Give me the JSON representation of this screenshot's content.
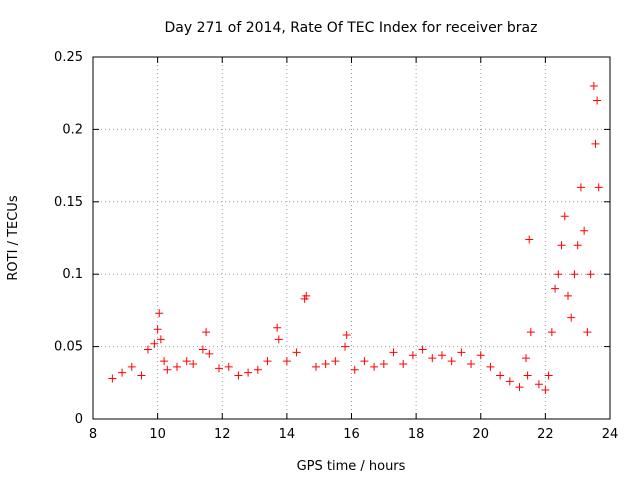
{
  "chart_data": {
    "type": "scatter",
    "title": "Day 271 of 2014, Rate Of TEC Index for receiver braz",
    "xlabel": "GPS time / hours",
    "ylabel": "ROTI / TECUs",
    "xlim": [
      8,
      24
    ],
    "ylim": [
      0,
      0.25
    ],
    "xticks": [
      8,
      10,
      12,
      14,
      16,
      18,
      20,
      22,
      24
    ],
    "xtick_labels": [
      "8",
      "10",
      "12",
      "14",
      "16",
      "18",
      "20",
      "22",
      "24"
    ],
    "yticks": [
      0,
      0.05,
      0.1,
      0.15,
      0.2,
      0.25
    ],
    "ytick_labels": [
      "0",
      "0.05",
      "0.1",
      "0.15",
      "0.2",
      "0.25"
    ],
    "grid": true,
    "marker": "+",
    "color": "#ff0000",
    "series": [
      {
        "name": "ROTI",
        "x": [
          8.6,
          8.9,
          9.2,
          9.5,
          9.7,
          9.9,
          10.0,
          10.05,
          10.1,
          10.2,
          10.3,
          10.6,
          10.9,
          11.1,
          11.4,
          11.5,
          11.6,
          11.9,
          12.2,
          12.5,
          12.8,
          13.1,
          13.4,
          13.7,
          13.75,
          14.0,
          14.3,
          14.55,
          14.6,
          14.9,
          15.2,
          15.5,
          15.8,
          15.85,
          16.1,
          16.4,
          16.7,
          17.0,
          17.3,
          17.6,
          17.9,
          18.2,
          18.5,
          18.8,
          19.1,
          19.4,
          19.7,
          20.0,
          20.3,
          20.6,
          20.9,
          21.2,
          21.4,
          21.45,
          21.5,
          21.55,
          21.8,
          22.0,
          22.1,
          22.2,
          22.3,
          22.4,
          22.5,
          22.6,
          22.7,
          22.8,
          22.9,
          23.0,
          23.1,
          23.2,
          23.3,
          23.4,
          23.5,
          23.55,
          23.6,
          23.65
        ],
        "y": [
          0.028,
          0.032,
          0.036,
          0.03,
          0.048,
          0.052,
          0.062,
          0.073,
          0.055,
          0.04,
          0.034,
          0.036,
          0.04,
          0.038,
          0.048,
          0.06,
          0.045,
          0.035,
          0.036,
          0.03,
          0.032,
          0.034,
          0.04,
          0.063,
          0.055,
          0.04,
          0.046,
          0.083,
          0.085,
          0.036,
          0.038,
          0.04,
          0.05,
          0.058,
          0.034,
          0.04,
          0.036,
          0.038,
          0.046,
          0.038,
          0.044,
          0.048,
          0.042,
          0.044,
          0.04,
          0.046,
          0.038,
          0.044,
          0.036,
          0.03,
          0.026,
          0.022,
          0.042,
          0.03,
          0.124,
          0.06,
          0.024,
          0.02,
          0.03,
          0.06,
          0.09,
          0.1,
          0.12,
          0.14,
          0.085,
          0.07,
          0.1,
          0.12,
          0.16,
          0.13,
          0.06,
          0.1,
          0.23,
          0.19,
          0.22,
          0.16
        ]
      }
    ]
  }
}
